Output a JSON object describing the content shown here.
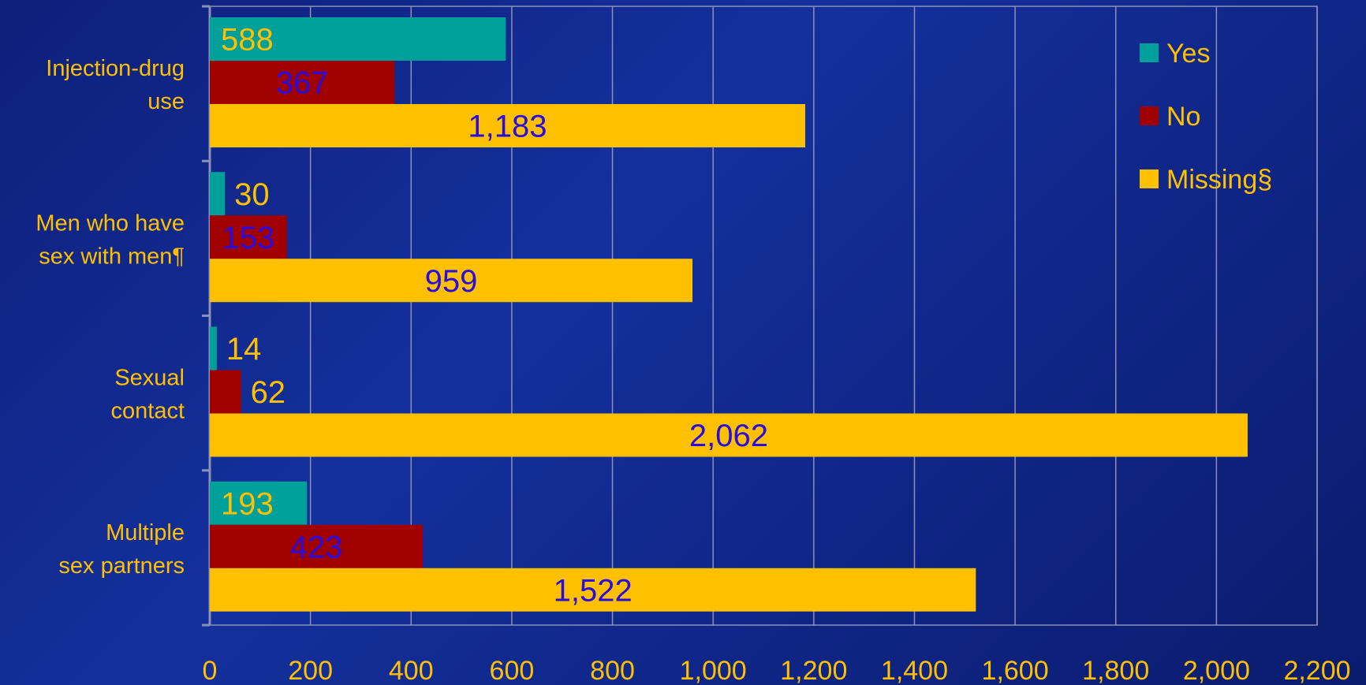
{
  "chart_data": {
    "type": "bar",
    "orientation": "horizontal",
    "categories": [
      [
        "Injection-drug",
        "use"
      ],
      [
        "Men who have",
        "sex with men¶"
      ],
      [
        "Sexual",
        "contact"
      ],
      [
        "Multiple",
        "sex partners"
      ]
    ],
    "series": [
      {
        "name": "Yes",
        "color": "#00a09a",
        "values": [
          588,
          30,
          14,
          193
        ],
        "labels": [
          "588",
          "30",
          "14",
          "193"
        ],
        "label_color": "#ffc000"
      },
      {
        "name": "No",
        "color": "#a00000",
        "values": [
          367,
          153,
          62,
          423
        ],
        "labels": [
          "367",
          "153",
          "62",
          "423"
        ],
        "label_color": "#2a0be0"
      },
      {
        "name": "Missing§",
        "color": "#ffc000",
        "values": [
          1183,
          959,
          2062,
          1522
        ],
        "labels": [
          "1,183",
          "959",
          "2,062",
          "1,522"
        ],
        "label_color": "#2a0be0"
      }
    ],
    "x_ticks": [
      "0",
      "200",
      "400",
      "600",
      "800",
      "1,000",
      "1,200",
      "1,400",
      "1,600",
      "1,800",
      "2,000",
      "2,200"
    ],
    "xlim": [
      0,
      2200
    ],
    "grid": true,
    "legend_position": "top-right",
    "title": "",
    "xlabel": "",
    "ylabel": ""
  }
}
